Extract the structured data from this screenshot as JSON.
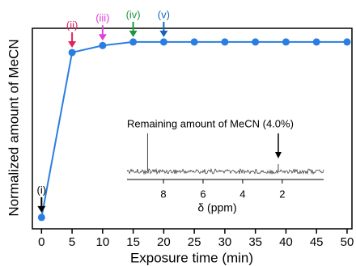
{
  "chart_data": {
    "type": "line",
    "xlabel": "Exposure time (min)",
    "ylabel": "Normalized  amount  of  MeCN",
    "x": [
      0,
      5,
      10,
      15,
      20,
      25,
      30,
      35,
      40,
      45,
      50
    ],
    "series": [
      {
        "color": "#2a7de1",
        "values": [
          0,
          0.94,
          0.98,
          1,
          1,
          1,
          1,
          1,
          1,
          1,
          1
        ]
      }
    ],
    "xlim": [
      -1.5,
      50.8
    ],
    "ylim": [
      -0.065,
      1.078
    ],
    "xticks": [
      0,
      5,
      10,
      15,
      20,
      25,
      30,
      35,
      40,
      45,
      50
    ],
    "annotations": [
      {
        "text": "(i)",
        "x": 0,
        "color": "#000000"
      },
      {
        "text": "(ii)",
        "x": 5,
        "color": "#e0245e"
      },
      {
        "text": "(iii)",
        "x": 10,
        "color": "#e040d8"
      },
      {
        "text": "(iv)",
        "x": 15,
        "color": "#1a9a3a"
      },
      {
        "text": "(v)",
        "x": 20,
        "color": "#1565c0"
      }
    ],
    "inset": {
      "text": "Remaining amount of MeCN (4.0%)",
      "xlabel": "δ (ppm)",
      "xlim": [
        9.84,
        -0.09
      ],
      "xticks": [
        8,
        6,
        4,
        2
      ],
      "peaks": [
        8.8,
        2.2
      ]
    }
  }
}
